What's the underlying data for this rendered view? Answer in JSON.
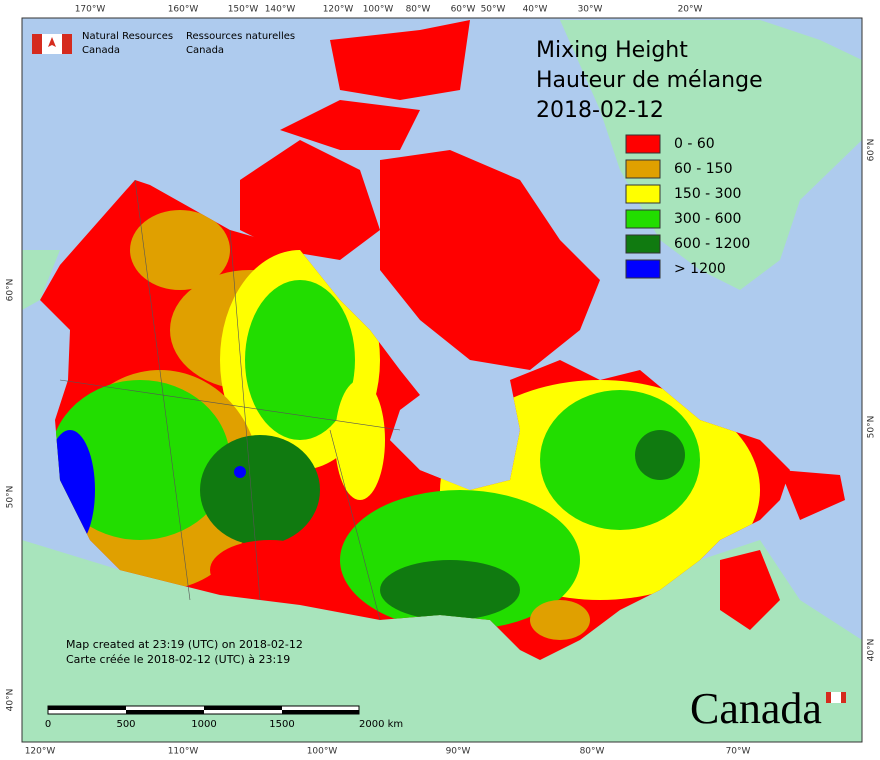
{
  "header": {
    "agency_en": [
      "Natural Resources",
      "Canada"
    ],
    "agency_fr": [
      "Ressources naturelles",
      "Canada"
    ]
  },
  "title": [
    "Mixing Height",
    "Hauteur de mélange",
    "2018-02-12"
  ],
  "legend": [
    {
      "label": "0 - 60",
      "color": "#ff0000"
    },
    {
      "label": "60 - 150",
      "color": "#e0a000"
    },
    {
      "label": "150 - 300",
      "color": "#ffff00"
    },
    {
      "label": "300 - 600",
      "color": "#22dd00"
    },
    {
      "label": "600 - 1200",
      "color": "#107a10"
    },
    {
      "label": "> 1200",
      "color": "#0000ff"
    }
  ],
  "notes": [
    "Map created at 23:19 (UTC) on 2018-02-12",
    "Carte créée le 2018-02-12 (UTC) à 23:19"
  ],
  "scale": [
    "0",
    "500",
    "1000",
    "1500",
    "2000  km"
  ],
  "wordmark": "Canada",
  "graticule": {
    "top": [
      "170°W",
      "160°W",
      "150°W",
      "140°W",
      "120°W",
      "100°W",
      "80°W",
      "60°W",
      "50°W",
      "40°W",
      "30°W",
      "20°W"
    ],
    "bottom": [
      "120°W",
      "110°W",
      "100°W",
      "90°W",
      "80°W",
      "70°W"
    ],
    "left": [
      "60°N",
      "50°N",
      "40°N"
    ],
    "right": [
      "60°N",
      "50°N",
      "40°N"
    ]
  }
}
